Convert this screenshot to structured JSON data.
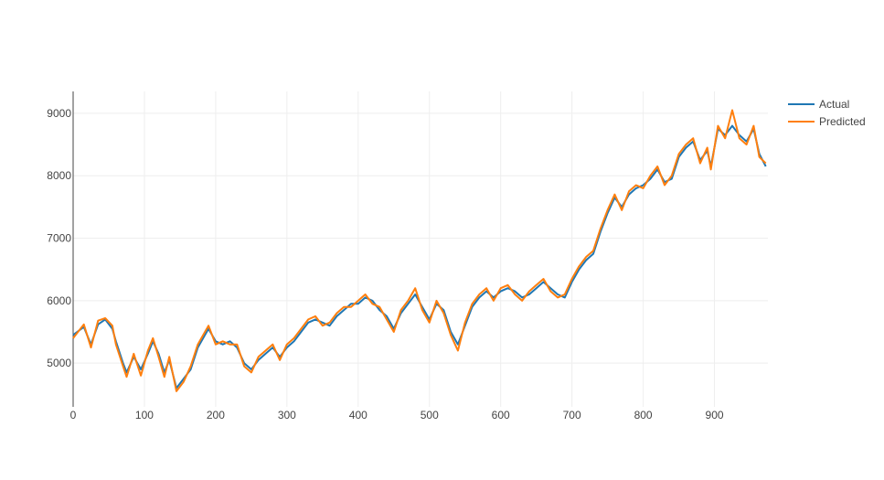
{
  "chart_data": {
    "type": "line",
    "xlim": [
      0,
      975
    ],
    "ylim": [
      4300,
      9350
    ],
    "x_ticks": [
      0,
      100,
      200,
      300,
      400,
      500,
      600,
      700,
      800,
      900
    ],
    "y_ticks": [
      5000,
      6000,
      7000,
      8000,
      9000
    ],
    "grid": true,
    "legend_position": "top-right",
    "series": [
      {
        "name": "Actual",
        "color": "#1f77b4",
        "points": [
          [
            0,
            5450
          ],
          [
            15,
            5580
          ],
          [
            25,
            5300
          ],
          [
            35,
            5620
          ],
          [
            45,
            5700
          ],
          [
            55,
            5550
          ],
          [
            60,
            5350
          ],
          [
            70,
            5000
          ],
          [
            75,
            4850
          ],
          [
            85,
            5100
          ],
          [
            95,
            4900
          ],
          [
            105,
            5150
          ],
          [
            112,
            5350
          ],
          [
            120,
            5150
          ],
          [
            128,
            4850
          ],
          [
            135,
            5050
          ],
          [
            145,
            4600
          ],
          [
            155,
            4750
          ],
          [
            165,
            4900
          ],
          [
            175,
            5250
          ],
          [
            185,
            5450
          ],
          [
            190,
            5550
          ],
          [
            200,
            5350
          ],
          [
            210,
            5300
          ],
          [
            220,
            5350
          ],
          [
            230,
            5250
          ],
          [
            240,
            5000
          ],
          [
            250,
            4900
          ],
          [
            260,
            5050
          ],
          [
            270,
            5150
          ],
          [
            280,
            5250
          ],
          [
            290,
            5100
          ],
          [
            300,
            5250
          ],
          [
            310,
            5350
          ],
          [
            320,
            5500
          ],
          [
            330,
            5650
          ],
          [
            340,
            5700
          ],
          [
            350,
            5650
          ],
          [
            360,
            5600
          ],
          [
            370,
            5750
          ],
          [
            380,
            5850
          ],
          [
            390,
            5950
          ],
          [
            400,
            5950
          ],
          [
            410,
            6050
          ],
          [
            420,
            6000
          ],
          [
            430,
            5850
          ],
          [
            440,
            5750
          ],
          [
            450,
            5550
          ],
          [
            460,
            5800
          ],
          [
            470,
            5950
          ],
          [
            480,
            6100
          ],
          [
            490,
            5900
          ],
          [
            500,
            5700
          ],
          [
            510,
            5950
          ],
          [
            520,
            5850
          ],
          [
            530,
            5500
          ],
          [
            540,
            5300
          ],
          [
            550,
            5600
          ],
          [
            560,
            5900
          ],
          [
            570,
            6050
          ],
          [
            580,
            6150
          ],
          [
            590,
            6050
          ],
          [
            600,
            6150
          ],
          [
            610,
            6200
          ],
          [
            620,
            6150
          ],
          [
            630,
            6050
          ],
          [
            640,
            6100
          ],
          [
            650,
            6200
          ],
          [
            660,
            6300
          ],
          [
            670,
            6200
          ],
          [
            680,
            6100
          ],
          [
            690,
            6050
          ],
          [
            700,
            6300
          ],
          [
            710,
            6500
          ],
          [
            720,
            6650
          ],
          [
            730,
            6750
          ],
          [
            740,
            7100
          ],
          [
            750,
            7400
          ],
          [
            760,
            7650
          ],
          [
            770,
            7500
          ],
          [
            780,
            7700
          ],
          [
            790,
            7800
          ],
          [
            800,
            7850
          ],
          [
            810,
            7950
          ],
          [
            820,
            8100
          ],
          [
            830,
            7900
          ],
          [
            840,
            7950
          ],
          [
            850,
            8300
          ],
          [
            860,
            8450
          ],
          [
            870,
            8550
          ],
          [
            880,
            8250
          ],
          [
            890,
            8400
          ],
          [
            895,
            8150
          ],
          [
            905,
            8750
          ],
          [
            915,
            8650
          ],
          [
            925,
            8800
          ],
          [
            935,
            8650
          ],
          [
            945,
            8550
          ],
          [
            955,
            8750
          ],
          [
            963,
            8350
          ],
          [
            972,
            8150
          ]
        ]
      },
      {
        "name": "Predicted",
        "color": "#ff7f0e",
        "points": [
          [
            0,
            5400
          ],
          [
            15,
            5620
          ],
          [
            25,
            5250
          ],
          [
            35,
            5680
          ],
          [
            45,
            5720
          ],
          [
            55,
            5600
          ],
          [
            60,
            5300
          ],
          [
            70,
            4950
          ],
          [
            75,
            4780
          ],
          [
            85,
            5150
          ],
          [
            95,
            4800
          ],
          [
            105,
            5200
          ],
          [
            112,
            5400
          ],
          [
            120,
            5100
          ],
          [
            128,
            4780
          ],
          [
            135,
            5100
          ],
          [
            145,
            4550
          ],
          [
            155,
            4700
          ],
          [
            165,
            4950
          ],
          [
            175,
            5300
          ],
          [
            185,
            5500
          ],
          [
            190,
            5600
          ],
          [
            200,
            5300
          ],
          [
            210,
            5350
          ],
          [
            220,
            5300
          ],
          [
            230,
            5300
          ],
          [
            240,
            4950
          ],
          [
            250,
            4850
          ],
          [
            260,
            5100
          ],
          [
            270,
            5200
          ],
          [
            280,
            5300
          ],
          [
            290,
            5050
          ],
          [
            300,
            5300
          ],
          [
            310,
            5400
          ],
          [
            320,
            5550
          ],
          [
            330,
            5700
          ],
          [
            340,
            5750
          ],
          [
            350,
            5600
          ],
          [
            360,
            5650
          ],
          [
            370,
            5800
          ],
          [
            380,
            5900
          ],
          [
            390,
            5900
          ],
          [
            400,
            6000
          ],
          [
            410,
            6100
          ],
          [
            420,
            5950
          ],
          [
            430,
            5900
          ],
          [
            440,
            5700
          ],
          [
            450,
            5500
          ],
          [
            460,
            5850
          ],
          [
            470,
            6000
          ],
          [
            480,
            6200
          ],
          [
            490,
            5850
          ],
          [
            500,
            5650
          ],
          [
            510,
            6000
          ],
          [
            520,
            5800
          ],
          [
            530,
            5450
          ],
          [
            540,
            5200
          ],
          [
            550,
            5650
          ],
          [
            560,
            5950
          ],
          [
            570,
            6100
          ],
          [
            580,
            6200
          ],
          [
            590,
            6000
          ],
          [
            600,
            6200
          ],
          [
            610,
            6250
          ],
          [
            620,
            6100
          ],
          [
            630,
            6000
          ],
          [
            640,
            6150
          ],
          [
            650,
            6250
          ],
          [
            660,
            6350
          ],
          [
            670,
            6150
          ],
          [
            680,
            6050
          ],
          [
            690,
            6100
          ],
          [
            700,
            6350
          ],
          [
            710,
            6550
          ],
          [
            720,
            6700
          ],
          [
            730,
            6800
          ],
          [
            740,
            7150
          ],
          [
            750,
            7450
          ],
          [
            760,
            7700
          ],
          [
            770,
            7450
          ],
          [
            780,
            7750
          ],
          [
            790,
            7850
          ],
          [
            800,
            7800
          ],
          [
            810,
            8000
          ],
          [
            820,
            8150
          ],
          [
            830,
            7850
          ],
          [
            840,
            8000
          ],
          [
            850,
            8350
          ],
          [
            860,
            8500
          ],
          [
            870,
            8600
          ],
          [
            880,
            8200
          ],
          [
            890,
            8450
          ],
          [
            895,
            8100
          ],
          [
            905,
            8800
          ],
          [
            915,
            8600
          ],
          [
            925,
            9050
          ],
          [
            935,
            8600
          ],
          [
            945,
            8500
          ],
          [
            955,
            8800
          ],
          [
            963,
            8300
          ],
          [
            972,
            8200
          ]
        ]
      }
    ]
  }
}
